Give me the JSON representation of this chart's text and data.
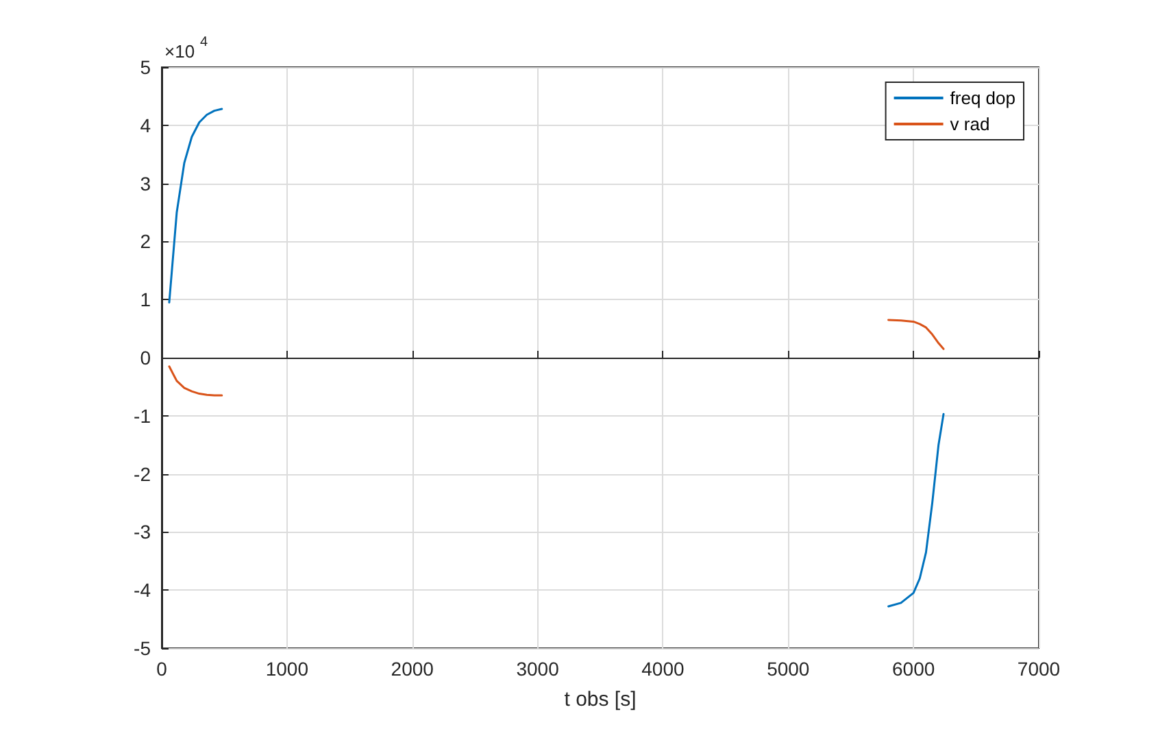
{
  "chart_data": {
    "type": "line",
    "xlabel": "t obs [s]",
    "annotations": [
      "×10$^{4}$"
    ],
    "x": [
      60,
      120,
      180,
      240,
      300,
      360,
      420,
      480,
      3000,
      5800,
      5900,
      6000,
      6050,
      6100,
      6150,
      6200,
      6240
    ],
    "series": [
      {
        "name": "freq dop",
        "color": "#0072bd",
        "values": [
          0.95,
          2.5,
          3.35,
          3.8,
          4.05,
          4.18,
          4.25,
          4.28,
          null,
          -4.28,
          -4.22,
          -4.05,
          -3.8,
          -3.35,
          -2.5,
          -1.5,
          -0.97
        ]
      },
      {
        "name": "v rad",
        "color": "#d95319",
        "values": [
          -0.15,
          -0.4,
          -0.52,
          -0.58,
          -0.62,
          -0.64,
          -0.65,
          -0.65,
          null,
          0.65,
          0.64,
          0.62,
          0.58,
          0.52,
          0.4,
          0.25,
          0.15
        ]
      }
    ],
    "xlim": [
      0,
      7000
    ],
    "xticks": [
      0,
      1000,
      2000,
      3000,
      4000,
      5000,
      6000,
      7000
    ],
    "ylim": [
      -5,
      5
    ],
    "yticks": [
      -5,
      -4,
      -3,
      -2,
      -1,
      0,
      1,
      2,
      3,
      4,
      5
    ],
    "grid": true,
    "legend": "top right",
    "marker": "none",
    "line_style": "solid"
  }
}
